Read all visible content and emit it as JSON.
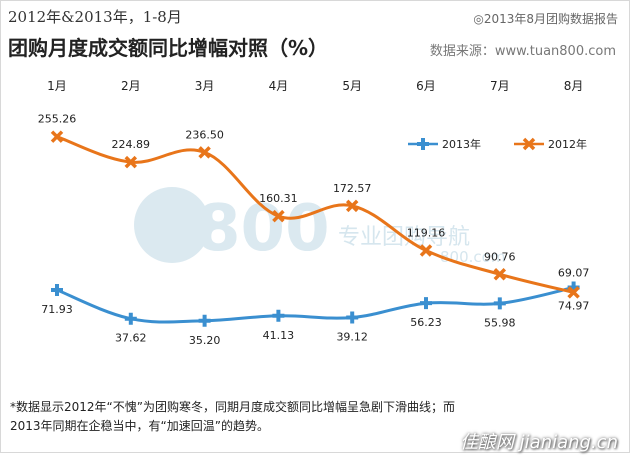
{
  "header": {
    "subtitle": "2012年&2013年，1-8月",
    "title": "团购月度成交额同比增幅对照（%）",
    "report": "◎2013年8月团购数据报告",
    "source": "数据来源：www.tuan800.com"
  },
  "watermark": {
    "big": "800",
    "text": "专业团购导航",
    "url": "800.com"
  },
  "footnote": {
    "line1": "*数据显示2012年“不愧”为团购寒冬，同期月度成交额同比增幅呈急剧下滑曲线；而",
    "line2": "2013年同期在企稳当中，有“加速回温”的趋势。"
  },
  "corner_text": "佳酿网 jianiang.cn",
  "chart_data": {
    "type": "line",
    "categories": [
      "1月",
      "2月",
      "3月",
      "4月",
      "5月",
      "6月",
      "7月",
      "8月"
    ],
    "series": [
      {
        "name": "2013年",
        "color": "#3a8fd0",
        "marker": "plus",
        "values": [
          71.93,
          37.62,
          35.2,
          41.13,
          39.12,
          56.23,
          55.98,
          74.97
        ],
        "labels": [
          "71.93",
          "37.62",
          "35.20",
          "41.13",
          "39.12",
          "56.23",
          "55.98",
          "74.97"
        ]
      },
      {
        "name": "2012年",
        "color": "#e8751a",
        "marker": "x",
        "values": [
          255.26,
          224.89,
          236.5,
          160.31,
          172.57,
          119.16,
          90.76,
          69.07
        ],
        "labels": [
          "255.26",
          "224.89",
          "236.50",
          "160.31",
          "172.57",
          "119.16",
          "90.76",
          "69.07"
        ]
      }
    ],
    "legend_position": "top-right",
    "grid": false
  }
}
